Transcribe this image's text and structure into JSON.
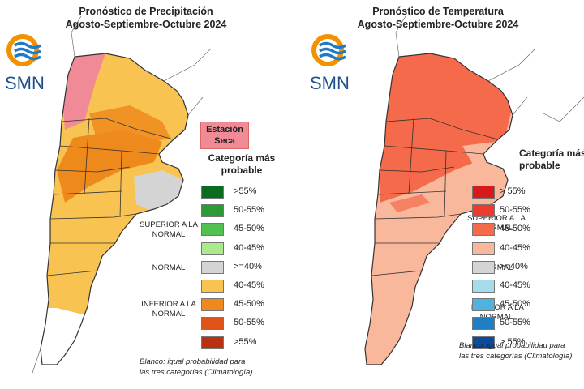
{
  "panels": [
    {
      "title_line1": "Pronóstico de Precipitación",
      "title_line2": "Agosto-Septiembre-Octubre 2024",
      "logo_text": "SMN",
      "dry_season_label": "Estación Seca",
      "legend_title": "Categoría más probable",
      "legend_groups": {
        "superior": "SUPERIOR A LA NORMAL",
        "normal": "NORMAL",
        "inferior": "INFERIOR A LA NORMAL"
      },
      "legend_items": [
        {
          "label": ">55%",
          "color": "#0b6b1f"
        },
        {
          "label": "50-55%",
          "color": "#2c9a35"
        },
        {
          "label": "45-50%",
          "color": "#52c152"
        },
        {
          "label": "40-45%",
          "color": "#a9ea8c"
        },
        {
          "label": ">=40%",
          "color": "#d4d4d4"
        },
        {
          "label": "40-45%",
          "color": "#f8c351"
        },
        {
          "label": "45-50%",
          "color": "#ee8a1c"
        },
        {
          "label": "50-55%",
          "color": "#e0541a"
        },
        {
          "label": ">55%",
          "color": "#b83212"
        }
      ],
      "footnote_line1": "Blanco: igual probabilidad para",
      "footnote_line2": "las tres categorías (Climatología)"
    },
    {
      "title_line1": "Pronóstico de Temperatura",
      "title_line2": "Agosto-Septiembre-Octubre 2024",
      "logo_text": "SMN",
      "legend_title": "Categoría más probable",
      "legend_groups": {
        "superior": "SUPERIOR A LA NORMAL",
        "normal": "NORMAL",
        "inferior": "INFERIOR A LA NORMAL"
      },
      "legend_items": [
        {
          "label": "> 55%",
          "color": "#d7191c"
        },
        {
          "label": "50-55%",
          "color": "#ec3b2e"
        },
        {
          "label": "45-50%",
          "color": "#f46a4a"
        },
        {
          "label": "40-45%",
          "color": "#f9b89c"
        },
        {
          "label": ">=40%",
          "color": "#d4d4d4"
        },
        {
          "label": "40-45%",
          "color": "#a6dbec"
        },
        {
          "label": "45-50%",
          "color": "#4fb3dc"
        },
        {
          "label": "50-55%",
          "color": "#1f7fc4"
        },
        {
          "label": "> 55%",
          "color": "#0b4b9a"
        }
      ],
      "footnote_line1": "Blanco: igual probabilidad para",
      "footnote_line2": "las tres categorías (Climatología)"
    }
  ],
  "colors": {
    "logo_orange": "#f39200",
    "logo_blue": "#1e7bc8",
    "border": "#333333"
  }
}
